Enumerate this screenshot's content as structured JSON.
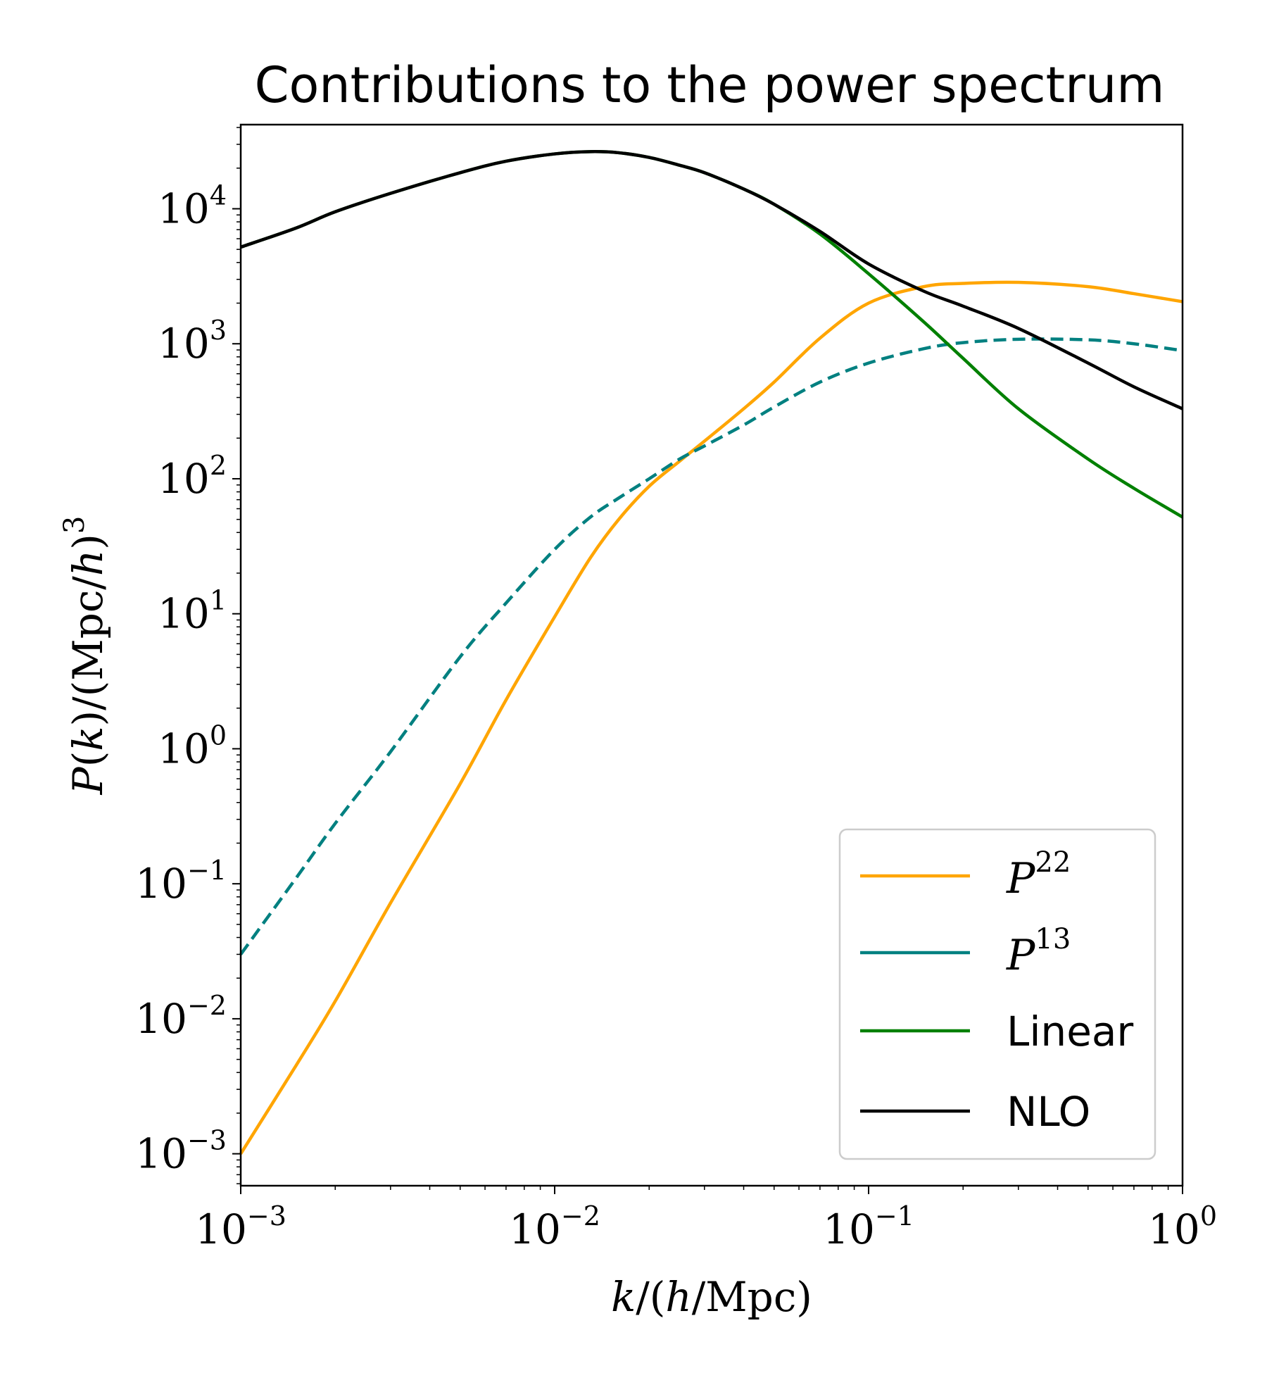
{
  "chart_data": {
    "type": "line",
    "title": "Contributions to the power spectrum",
    "xlabel": "k/(h/Mpc)",
    "ylabel": "P(k)/(Mpc/h)^3",
    "xscale": "log",
    "yscale": "log",
    "xlim": [
      0.001,
      1
    ],
    "ylim": [
      0.00058,
      42000
    ],
    "x_tick_labels": [
      {
        "base": "10",
        "exp": "−3"
      },
      {
        "base": "10",
        "exp": "−2"
      },
      {
        "base": "10",
        "exp": "−1"
      },
      {
        "base": "10",
        "exp": "0"
      }
    ],
    "y_tick_labels": [
      {
        "base": "10",
        "exp": "−3"
      },
      {
        "base": "10",
        "exp": "−2"
      },
      {
        "base": "10",
        "exp": "−1"
      },
      {
        "base": "10",
        "exp": "0"
      },
      {
        "base": "10",
        "exp": "1"
      },
      {
        "base": "10",
        "exp": "2"
      },
      {
        "base": "10",
        "exp": "3"
      },
      {
        "base": "10",
        "exp": "4"
      }
    ],
    "legend_position": "lower right",
    "x": [
      0.001,
      0.0015,
      0.002,
      0.003,
      0.005,
      0.007,
      0.01,
      0.013,
      0.016,
      0.02,
      0.025,
      0.03,
      0.04,
      0.05,
      0.07,
      0.1,
      0.15,
      0.2,
      0.3,
      0.5,
      0.7,
      1.0
    ],
    "series": [
      {
        "name": "P^22",
        "label_base": "P",
        "label_sup": "22",
        "color": "#FFA500",
        "dash": "solid",
        "values": [
          0.001,
          0.0045,
          0.0135,
          0.072,
          0.55,
          2.3,
          9.5,
          26,
          50,
          88,
          135,
          190,
          330,
          520,
          1100,
          2000,
          2650,
          2800,
          2850,
          2650,
          2350,
          2050
        ]
      },
      {
        "name": "P^13",
        "label_base": "P",
        "label_sup": "13",
        "color": "#008080",
        "dash": "dashed",
        "values": [
          0.03,
          0.11,
          0.28,
          0.95,
          4.8,
          12,
          30,
          52,
          72,
          100,
          140,
          175,
          250,
          340,
          520,
          720,
          920,
          1020,
          1080,
          1070,
          1000,
          890
        ]
      },
      {
        "name": "Linear",
        "label_base": "Linear",
        "label_sup": "",
        "color": "#008000",
        "dash": "solid",
        "values": [
          5200,
          7200,
          9500,
          13000,
          18500,
          22500,
          25500,
          26500,
          26000,
          24000,
          21000,
          18500,
          14000,
          10800,
          6500,
          3300,
          1450,
          780,
          330,
          140,
          85,
          52
        ]
      },
      {
        "name": "NLO",
        "label_base": "NLO",
        "label_sup": "",
        "color": "#000000",
        "dash": "solid",
        "values": [
          5200,
          7200,
          9500,
          13000,
          18500,
          22500,
          25500,
          26500,
          26000,
          24000,
          21000,
          18500,
          14000,
          10800,
          6800,
          3900,
          2450,
          1900,
          1300,
          720,
          480,
          330
        ]
      }
    ]
  }
}
